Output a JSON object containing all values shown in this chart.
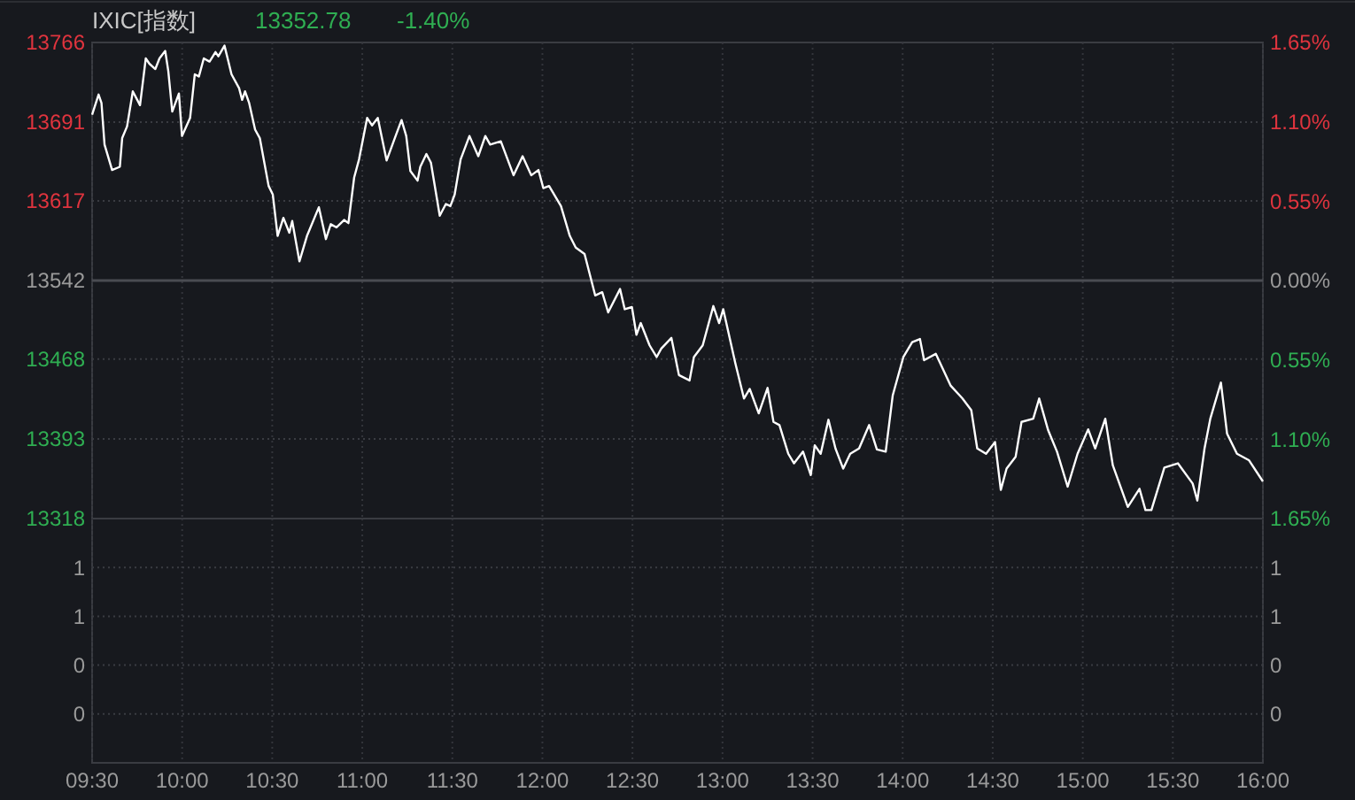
{
  "chart_data": [
    {
      "type": "line",
      "title": "IXIC[指数]",
      "annotations": [
        "13352.78",
        "-1.40%"
      ],
      "x": [
        9.5,
        9.536,
        9.552,
        9.569,
        9.611,
        9.654,
        9.667,
        9.694,
        9.726,
        9.766,
        9.798,
        9.818,
        9.851,
        9.874,
        9.906,
        9.923,
        9.945,
        9.982,
        9.999,
        10.044,
        10.07,
        10.093,
        10.12,
        10.152,
        10.185,
        10.201,
        10.235,
        10.274,
        10.316,
        10.333,
        10.349,
        10.372,
        10.405,
        10.431,
        10.48,
        10.503,
        10.53,
        10.562,
        10.595,
        10.611,
        10.651,
        10.693,
        10.759,
        10.798,
        10.825,
        10.857,
        10.899,
        10.923,
        10.955,
        10.982,
        11.027,
        11.054,
        11.086,
        11.135,
        11.185,
        11.218,
        11.244,
        11.267,
        11.307,
        11.322,
        11.356,
        11.381,
        11.43,
        11.464,
        11.489,
        11.513,
        11.546,
        11.595,
        11.644,
        11.683,
        11.71,
        11.769,
        11.84,
        11.89,
        11.938,
        11.978,
        12.005,
        12.037,
        12.103,
        12.152,
        12.185,
        12.234,
        12.293,
        12.332,
        12.365,
        12.431,
        12.457,
        12.497,
        12.522,
        12.546,
        12.595,
        12.634,
        12.66,
        12.716,
        12.758,
        12.817,
        12.841,
        12.89,
        12.949,
        12.981,
        13.004,
        13.07,
        13.119,
        13.151,
        13.201,
        13.25,
        13.283,
        13.316,
        13.365,
        13.397,
        13.447,
        13.49,
        13.512,
        13.545,
        13.588,
        13.627,
        13.67,
        13.709,
        13.758,
        13.814,
        13.857,
        13.906,
        13.945,
        14.004,
        14.053,
        14.096,
        14.119,
        14.184,
        14.267,
        14.332,
        14.381,
        14.414,
        14.463,
        14.513,
        14.545,
        14.577,
        14.627,
        14.66,
        14.725,
        14.758,
        14.808,
        14.857,
        14.916,
        14.971,
        15.03,
        15.069,
        15.125,
        15.167,
        15.25,
        15.315,
        15.348,
        15.381,
        15.453,
        15.528,
        15.61,
        15.636,
        15.676,
        15.708,
        15.767,
        15.801,
        15.856,
        15.922,
        16.0
      ],
      "series": [
        {
          "color": "#ffffff",
          "values": [
            13698,
            13717,
            13709,
            13670,
            13646,
            13649,
            13676,
            13687,
            13720,
            13707,
            13751,
            13746,
            13741,
            13751,
            13758,
            13739,
            13701,
            13718,
            13678,
            13695,
            13736,
            13734,
            13751,
            13748,
            13757,
            13753,
            13763,
            13736,
            13723,
            13712,
            13720,
            13709,
            13684,
            13676,
            13631,
            13623,
            13584,
            13601,
            13587,
            13598,
            13560,
            13584,
            13611,
            13581,
            13595,
            13592,
            13599,
            13596,
            13639,
            13656,
            13695,
            13688,
            13695,
            13655,
            13678,
            13693,
            13678,
            13645,
            13636,
            13649,
            13661,
            13653,
            13603,
            13614,
            13612,
            13623,
            13656,
            13678,
            13659,
            13678,
            13670,
            13673,
            13641,
            13659,
            13641,
            13646,
            13629,
            13631,
            13612,
            13584,
            13573,
            13567,
            13528,
            13531,
            13512,
            13534,
            13515,
            13517,
            13491,
            13502,
            13481,
            13470,
            13478,
            13488,
            13453,
            13448,
            13470,
            13481,
            13518,
            13502,
            13515,
            13465,
            13431,
            13440,
            13417,
            13441,
            13409,
            13406,
            13379,
            13370,
            13381,
            13359,
            13387,
            13379,
            13411,
            13384,
            13365,
            13379,
            13384,
            13406,
            13383,
            13381,
            13434,
            13470,
            13484,
            13487,
            13467,
            13473,
            13443,
            13431,
            13420,
            13384,
            13379,
            13390,
            13345,
            13365,
            13376,
            13409,
            13412,
            13431,
            13401,
            13381,
            13348,
            13379,
            13402,
            13384,
            13412,
            13368,
            13329,
            13346,
            13326,
            13326,
            13366,
            13370,
            13351,
            13335,
            13384,
            13412,
            13446,
            13398,
            13379,
            13373,
            13353
          ]
        }
      ],
      "xlim": [
        9.5,
        16
      ],
      "xticks": [
        {
          "value": 9.5,
          "label": null
        },
        {
          "value": 10,
          "label": null
        },
        {
          "value": 10.5,
          "label": null
        },
        {
          "value": 11,
          "label": null
        },
        {
          "value": 11.5,
          "label": null
        },
        {
          "value": 12,
          "label": null
        },
        {
          "value": 12.5,
          "label": null
        },
        {
          "value": 13,
          "label": null
        },
        {
          "value": 13.5,
          "label": null
        },
        {
          "value": 14,
          "label": null
        },
        {
          "value": 14.5,
          "label": null
        },
        {
          "value": 15,
          "label": null
        },
        {
          "value": 15.5,
          "label": null
        },
        {
          "value": 16,
          "label": null
        }
      ],
      "ylim": [
        13318,
        13766
      ],
      "yticks": [
        13318,
        13393,
        13468,
        13542,
        13617,
        13691,
        13766
      ],
      "y2lim": [
        -1.65,
        1.65
      ],
      "y2ticks": [
        {
          "value": -1.65,
          "label": "1.65%"
        },
        {
          "value": -1.1,
          "label": "1.10%"
        },
        {
          "value": -0.55,
          "label": "0.55%"
        },
        {
          "value": 0,
          "label": "0.00%"
        },
        {
          "value": 0.55,
          "label": "0.55%"
        },
        {
          "value": 1.1,
          "label": "1.10%"
        },
        {
          "value": 1.65,
          "label": "1.65%"
        }
      ],
      "ref_lines": [
        {
          "axis": "y",
          "value": 13542,
          "color": "#4a4c52"
        }
      ],
      "grid": true,
      "tick_labels": "y",
      "line_style": "solid"
    },
    {
      "type": "bar",
      "xlim": [
        9.5,
        16
      ],
      "xticks": [
        {
          "value": 9.5,
          "label": "09:30"
        },
        {
          "value": 10,
          "label": "10:00"
        },
        {
          "value": 10.5,
          "label": "10:30"
        },
        {
          "value": 11,
          "label": "11:00"
        },
        {
          "value": 11.5,
          "label": "11:30"
        },
        {
          "value": 12,
          "label": "12:00"
        },
        {
          "value": 12.5,
          "label": "12:30"
        },
        {
          "value": 13,
          "label": "13:00"
        },
        {
          "value": 13.5,
          "label": "13:30"
        },
        {
          "value": 14,
          "label": "14:00"
        },
        {
          "value": 14.5,
          "label": "14:30"
        },
        {
          "value": 15,
          "label": "15:00"
        },
        {
          "value": 15.5,
          "label": "15:30"
        },
        {
          "value": 16,
          "label": "16:00"
        }
      ],
      "ylim": [
        0,
        1.25
      ],
      "yticks": [
        {
          "value": 0.25,
          "label": "0"
        },
        {
          "value": 0.5,
          "label": "0"
        },
        {
          "value": 0.75,
          "label": "1"
        },
        {
          "value": 1,
          "label": "1"
        }
      ],
      "y2lim": [
        0,
        1.25
      ],
      "y2ticks": [
        {
          "value": 0.25,
          "label": "0"
        },
        {
          "value": 0.5,
          "label": "0"
        },
        {
          "value": 0.75,
          "label": "1"
        },
        {
          "value": 1,
          "label": "1"
        }
      ],
      "grid": true
    }
  ]
}
